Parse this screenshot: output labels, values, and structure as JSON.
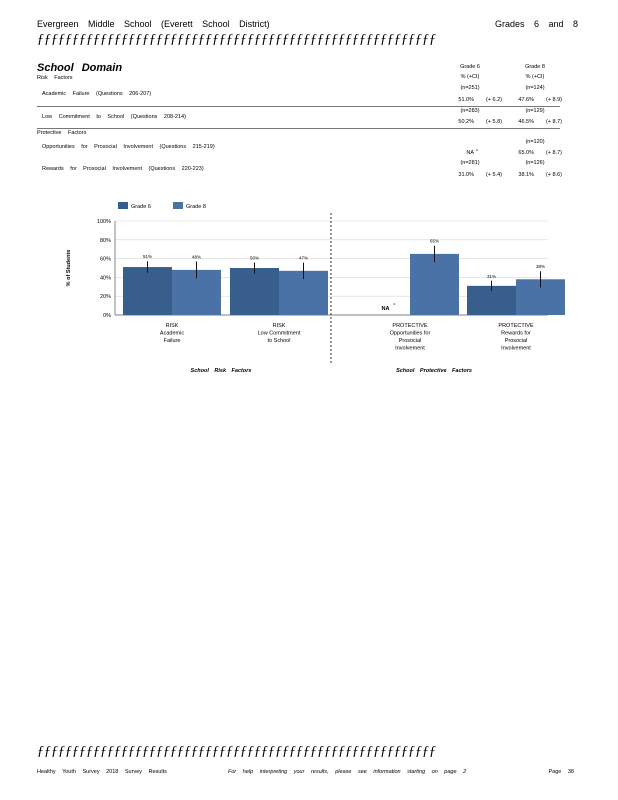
{
  "header": {
    "school": "Evergreen Middle School (Everett School District)",
    "grades": "Grades 6 and 8",
    "rule": "ƒƒƒƒƒƒƒƒƒƒƒƒƒƒƒƒƒƒƒƒƒƒƒƒƒƒƒƒƒƒƒƒƒƒƒƒƒƒƒƒƒƒƒƒƒƒƒƒƒƒƒƒƒƒƒƒƒ"
  },
  "section": {
    "title": "School Domain",
    "risk_label": "Risk Factors",
    "protective_label": "Protective Factors",
    "col_grade6": "Grade 6",
    "col_grade8": "Grade 8",
    "col_pct": "% (+CI)"
  },
  "rows": [
    {
      "label": "Academic Failure (Questions 206-207)",
      "n6": "(n=251)",
      "n8": "(n=124)",
      "p6": "51.0%",
      "ci6": "(+ 6.2)",
      "p8": "47.6%",
      "ci8": "(+ 8.9)"
    },
    {
      "label": "Low Commitment to School (Questions 208-214)",
      "n6": "(n=283)",
      "n8": "(n=129)",
      "p6": "50.2%",
      "ci6": "(+ 5.8)",
      "p8": "46.5%",
      "ci8": "(+ 8.7)"
    },
    {
      "label": "Opportunities for Prosocial Involvement (Questions 215-219)",
      "n6": "",
      "n8": "(n=120)",
      "p6": "NA",
      "ci6": "",
      "p8": "65.0%",
      "ci8": "(+ 8.7)"
    },
    {
      "label": "Rewards for Prosocial Involvement (Questions 220-223)",
      "n6": "(n=281)",
      "n8": "(n=126)",
      "p6": "31.0%",
      "ci6": "(+ 5.4)",
      "p8": "38.1%",
      "ci8": "(+ 8.6)"
    }
  ],
  "chart_data": {
    "type": "bar",
    "ylabel": "% of Students",
    "ylim": [
      0,
      100
    ],
    "yticks": [
      "0%",
      "20%",
      "40%",
      "60%",
      "80%",
      "100%"
    ],
    "categories": [
      "RISK Academic Failure",
      "RISK Low Commitment to School",
      "PROTECTIVE Opportunities for Prosocial Involvement",
      "PROTECTIVE Rewards for Prosocial Involvement"
    ],
    "category_lines": [
      [
        "RISK",
        "Academic",
        "Failure"
      ],
      [
        "RISK",
        "Low Commitment",
        "to School"
      ],
      [
        "PROTECTIVE",
        "Opportunities for",
        "Prosocial",
        "Involvement"
      ],
      [
        "PROTECTIVE",
        "Rewards for",
        "Prosocial",
        "Involvement"
      ]
    ],
    "series": [
      {
        "name": "Grade 6",
        "color": "#385e8e",
        "values": [
          51,
          50,
          null,
          31
        ],
        "ci": [
          6.2,
          5.8,
          null,
          5.4
        ],
        "labels": [
          "51%",
          "50%",
          "NA",
          "31%"
        ]
      },
      {
        "name": "Grade 8",
        "color": "#4a72a6",
        "values": [
          48,
          47,
          65,
          38
        ],
        "ci": [
          8.9,
          8.7,
          8.7,
          8.6
        ],
        "labels": [
          "48%",
          "47%",
          "65%",
          "38%"
        ]
      }
    ],
    "group_labels": [
      "School Risk Factors",
      "School Protective Factors"
    ],
    "legend_position": "top",
    "grid": true
  },
  "footer": {
    "left": "Healthy Youth Survey 2018 Survey Results",
    "middle": "For help interpreting your results, please see information starting on page 2",
    "page": "Page 38"
  }
}
